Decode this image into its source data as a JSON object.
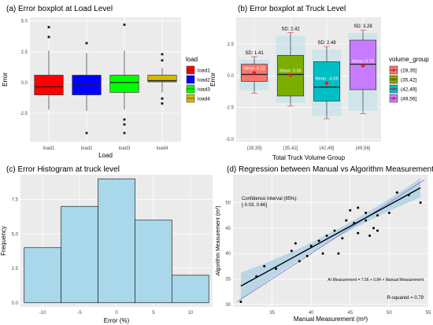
{
  "chart_data": [
    {
      "type": "boxplot",
      "title": "(a) Error boxplot at Load Level",
      "xlabel": "Load",
      "ylabel": "Error",
      "ylim": [
        -4.8,
        5.3
      ],
      "yticks": [
        -2.5,
        0.0,
        2.5,
        5.0
      ],
      "ytick_labels": [
        "-2.5",
        "0.0",
        "2.5",
        "5.0"
      ],
      "grid": true,
      "legend_title": "load",
      "legend_position": "right",
      "categories": [
        "load1",
        "load2",
        "load3",
        "load4"
      ],
      "colors": [
        "#ff0000",
        "#0000ff",
        "#00ff00",
        "#d4b800"
      ],
      "boxes": [
        {
          "low": -2.2,
          "q1": -1.0,
          "median": -0.35,
          "q3": 0.6,
          "high": 2.6,
          "outliers": [
            4.5,
            3.7
          ]
        },
        {
          "low": -2.3,
          "q1": -1.0,
          "median": -0.2,
          "q3": 0.6,
          "high": 2.4,
          "outliers": [
            3.2,
            -4.1
          ]
        },
        {
          "low": -2.2,
          "q1": -0.8,
          "median": 0.0,
          "q3": 0.6,
          "high": 2.6,
          "outliers": [
            4.7,
            -3.0,
            -3.4,
            -4.1
          ]
        },
        {
          "low": -0.8,
          "q1": 0.05,
          "median": 0.15,
          "q3": 0.6,
          "high": 1.2,
          "outliers": [
            2.3,
            1.8,
            -1.3,
            -1.7
          ]
        }
      ]
    },
    {
      "type": "boxplot",
      "title": "(b) Error boxplot at Truck Level",
      "xlabel": "Total Truck Volume Group",
      "ylabel": "Error",
      "ylim": [
        -5.2,
        4.6
      ],
      "yticks": [
        -5.0,
        -2.5,
        0.0,
        2.5
      ],
      "ytick_labels": [
        "-5.0",
        "-2.5",
        "0.0",
        "2.5"
      ],
      "grid": true,
      "legend_title": "volume_group",
      "legend_position": "right",
      "categories": [
        "(28,35]",
        "(35,42]",
        "(42,49]",
        "(49,56]"
      ],
      "colors": [
        "#f8766d",
        "#7cae00",
        "#00bfc4",
        "#c77cff"
      ],
      "sd_labels": [
        "SD: 1.41",
        "SD: 2.42",
        "SD: 2.48",
        "SD: 3.28"
      ],
      "mean_labels": [
        "Mean: 0.22",
        "Mean: 0.05",
        "Mean: -0.59",
        "Mean: 0.79"
      ],
      "means": [
        0.22,
        0.05,
        -0.59,
        0.79
      ],
      "boxes": [
        {
          "low": -1.4,
          "q1": -0.45,
          "median": 0.1,
          "q3": 0.9,
          "high": 1.5
        },
        {
          "low": -2.4,
          "q1": -1.6,
          "median": 0.1,
          "q3": 1.6,
          "high": 3.4
        },
        {
          "low": -3.4,
          "q1": -2.0,
          "median": -0.9,
          "q3": 1.1,
          "high": 2.3
        },
        {
          "low": -3.0,
          "q1": -1.1,
          "median": 0.9,
          "q3": 2.8,
          "high": 3.6
        }
      ]
    },
    {
      "type": "bar",
      "title": "(c) Error Histogram at truck level",
      "xlabel": "Error (%)",
      "ylabel": "Frequency",
      "xlim": [
        -13,
        13
      ],
      "ylim": [
        -0.3,
        9.3
      ],
      "xticks": [
        -10,
        -5,
        0,
        5,
        10
      ],
      "xtick_labels": [
        "-10",
        "-5",
        "0",
        "5",
        "10"
      ],
      "yticks": [
        0.0,
        2.5,
        5.0,
        7.5
      ],
      "ytick_labels": [
        "0.0",
        "2.5",
        "5.0",
        "7.5"
      ],
      "grid": true,
      "bins": [
        [
          -12.5,
          -7.5
        ],
        [
          -7.5,
          -2.5
        ],
        [
          -2.5,
          2.5
        ],
        [
          2.5,
          7.5
        ],
        [
          7.5,
          12.5
        ]
      ],
      "values": [
        4,
        7,
        9,
        6,
        2
      ],
      "color": "#a8d8ea"
    },
    {
      "type": "scatter",
      "title": "(d) Regression between Manual vs Algorithm Measurements",
      "xlabel": "Manual Measurement (m³)",
      "ylabel": "Algorithm Measurement (m³)",
      "xlim": [
        30,
        55
      ],
      "ylim": [
        29.5,
        55.5
      ],
      "xticks": [
        35,
        40,
        45,
        50,
        55
      ],
      "xtick_labels": [
        "35",
        "40",
        "45",
        "50",
        "55"
      ],
      "yticks": [
        30,
        35,
        40,
        45,
        50
      ],
      "ytick_labels": [
        "30",
        "35",
        "40",
        "45",
        "50"
      ],
      "grid": true,
      "points": [
        [
          31,
          30.5
        ],
        [
          33,
          35.5
        ],
        [
          34,
          37.5
        ],
        [
          35.5,
          37.0
        ],
        [
          37.5,
          40.5
        ],
        [
          38,
          42.0
        ],
        [
          38.5,
          38.5
        ],
        [
          39.5,
          39.5
        ],
        [
          40,
          41.5
        ],
        [
          41,
          42.5
        ],
        [
          41.5,
          40.0
        ],
        [
          42,
          43.5
        ],
        [
          43,
          44.5
        ],
        [
          43.5,
          40.0
        ],
        [
          44,
          43.0
        ],
        [
          44.5,
          46.5
        ],
        [
          45,
          48.5
        ],
        [
          45.5,
          46.0
        ],
        [
          46,
          44.0
        ],
        [
          46,
          49.0
        ],
        [
          47,
          46.5
        ],
        [
          47,
          48.0
        ],
        [
          47.5,
          43.5
        ],
        [
          48,
          45.0
        ],
        [
          48.5,
          44.5
        ],
        [
          48.5,
          47.5
        ],
        [
          50,
          48.0
        ],
        [
          51,
          52.0
        ],
        [
          52.5,
          51.5
        ],
        [
          54,
          50.0
        ]
      ],
      "regression": {
        "intercept": 7.56,
        "slope": 0.84
      },
      "annotations": [
        "Confidence Interval (95%):",
        "[-0.03, 0.66]",
        "AI Measurement = 7.56 + 0.84 × Manual Measurement",
        "R-squared = 0.79"
      ]
    }
  ],
  "colors": {
    "panel_bg": "#ebebeb",
    "grid": "#ffffff",
    "ci_band": "#a9cde4",
    "regression_line": "#000000",
    "identity_line": "#7f6fd8",
    "mean_marker": "#e0202a"
  }
}
